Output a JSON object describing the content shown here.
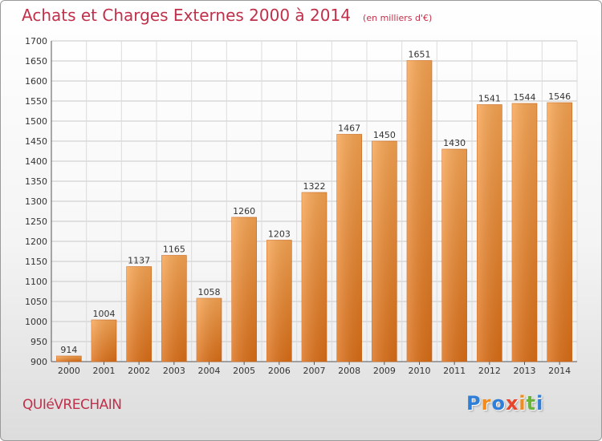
{
  "header": {
    "title": "Achats et Charges Externes 2000 à 2014",
    "subtitle": "(en milliers d'€)"
  },
  "footer": {
    "commune": "QUIéVRECHAIN",
    "logo": {
      "letters": [
        "P",
        "r",
        "o",
        "x",
        "i",
        "t",
        "i"
      ],
      "colors": [
        "#2f7fd8",
        "#f28c1e",
        "#2f7fd8",
        "#e8452c",
        "#f28c1e",
        "#6ab43c",
        "#2f7fd8"
      ]
    }
  },
  "chart_data": {
    "type": "bar",
    "categories": [
      "2000",
      "2001",
      "2002",
      "2003",
      "2004",
      "2005",
      "2006",
      "2007",
      "2008",
      "2009",
      "2010",
      "2011",
      "2012",
      "2013",
      "2014"
    ],
    "values": [
      914,
      1004,
      1137,
      1165,
      1058,
      1260,
      1203,
      1322,
      1467,
      1450,
      1651,
      1430,
      1541,
      1544,
      1546
    ],
    "title": "Achats et Charges Externes 2000 à 2014",
    "ylim": [
      900,
      1700
    ],
    "yticks": [
      900,
      950,
      1000,
      1050,
      1100,
      1150,
      1200,
      1250,
      1300,
      1350,
      1400,
      1450,
      1500,
      1550,
      1600,
      1650,
      1700
    ],
    "grid": true,
    "bar_color": "#f0923a"
  }
}
